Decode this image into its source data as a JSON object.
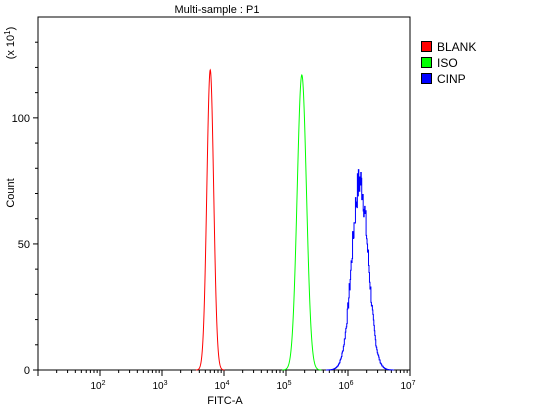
{
  "chart_data": {
    "type": "line",
    "title": "Multi-sample : P1",
    "xlabel": "FITC-A",
    "ylabel": "Count",
    "y_scale_note": "(x 10",
    "y_scale_exponent": "1",
    "x_scale": "log",
    "xlim": [
      10,
      10000000
    ],
    "ylim": [
      0,
      140
    ],
    "x_ticks": [
      {
        "value": 100,
        "base": "10",
        "exp": "2"
      },
      {
        "value": 1000,
        "base": "10",
        "exp": "3"
      },
      {
        "value": 10000,
        "base": "10",
        "exp": "4"
      },
      {
        "value": 100000,
        "base": "10",
        "exp": "5"
      },
      {
        "value": 1000000,
        "base": "10",
        "exp": "6"
      },
      {
        "value": 10000000,
        "base": "10",
        "exp": "7"
      }
    ],
    "y_ticks": [
      0,
      50,
      100
    ],
    "grid": false,
    "legend_position": "right",
    "series": [
      {
        "name": "BLANK",
        "color": "#ff0000",
        "peak_x": 6000,
        "peak_y": 119,
        "spread_log10": 0.055,
        "noise": 0
      },
      {
        "name": "ISO",
        "color": "#00ff00",
        "peak_x": 180000,
        "peak_y": 117,
        "spread_log10": 0.075,
        "noise": 0
      },
      {
        "name": "CINP",
        "color": "#0000ff",
        "peak_x": 1550000,
        "peak_y": 75,
        "spread_log10": 0.13,
        "noise": 1
      }
    ]
  }
}
